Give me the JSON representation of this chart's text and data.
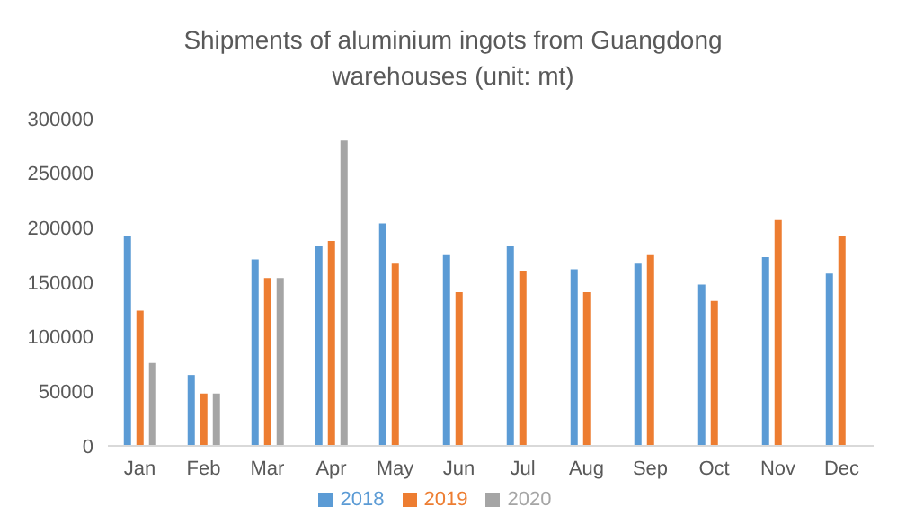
{
  "chart_data": {
    "type": "bar",
    "title": "Shipments of aluminium ingots from Guangdong warehouses (unit: mt)",
    "categories": [
      "Jan",
      "Feb",
      "Mar",
      "Apr",
      "May",
      "Jun",
      "Jul",
      "Aug",
      "Sep",
      "Oct",
      "Nov",
      "Dec"
    ],
    "series": [
      {
        "name": "2018",
        "color": "#5b9bd5",
        "values": [
          192000,
          65000,
          171000,
          183000,
          204000,
          175000,
          183000,
          162000,
          167000,
          148000,
          173000,
          158000
        ]
      },
      {
        "name": "2019",
        "color": "#ed7d31",
        "values": [
          124000,
          48000,
          154000,
          188000,
          167000,
          141000,
          160000,
          141000,
          175000,
          133000,
          207000,
          192000
        ]
      },
      {
        "name": "2020",
        "color": "#a5a5a5",
        "values": [
          76000,
          48000,
          154000,
          280000,
          null,
          null,
          null,
          null,
          null,
          null,
          null,
          null
        ]
      }
    ],
    "ylim": [
      0,
      300000
    ],
    "yticks": [
      0,
      50000,
      100000,
      150000,
      200000,
      250000,
      300000
    ],
    "grid": false,
    "legend": "bottom"
  }
}
